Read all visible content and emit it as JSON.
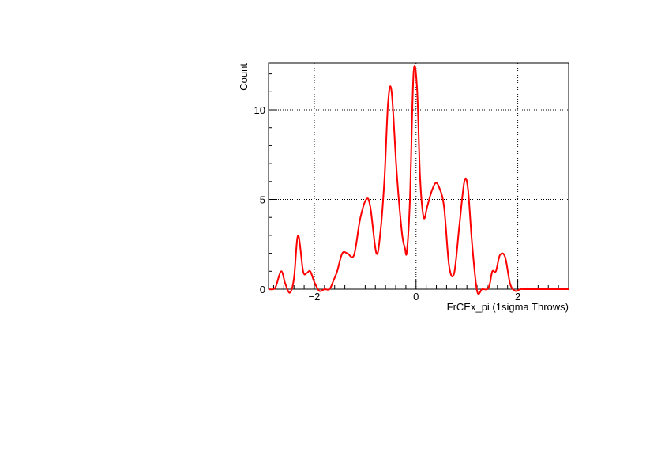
{
  "chart_data": {
    "type": "line",
    "title": "",
    "xlabel": "FrCEx_pi (1sigma Throws)",
    "ylabel": "Count",
    "xlim": [
      -2.9,
      3.0
    ],
    "ylim": [
      0,
      12.6
    ],
    "x_ticks": [
      -2,
      0,
      2
    ],
    "x_tick_labels": [
      "−2",
      "0",
      "2"
    ],
    "y_ticks": [
      0,
      5,
      10
    ],
    "y_tick_labels": [
      "0",
      "5",
      "10"
    ],
    "grid": true,
    "legend": "none",
    "series": [
      {
        "color": "#ff0000",
        "x": [
          -2.9,
          -2.8,
          -2.75,
          -2.65,
          -2.57,
          -2.48,
          -2.4,
          -2.32,
          -2.22,
          -2.15,
          -2.08,
          -2.0,
          -1.9,
          -1.8,
          -1.7,
          -1.62,
          -1.55,
          -1.45,
          -1.35,
          -1.22,
          -1.1,
          -0.98,
          -0.9,
          -0.78,
          -0.7,
          -0.62,
          -0.55,
          -0.48,
          -0.38,
          -0.28,
          -0.22,
          -0.18,
          -0.12,
          -0.05,
          0.02,
          0.08,
          0.15,
          0.22,
          0.3,
          0.38,
          0.45,
          0.55,
          0.65,
          0.75,
          0.85,
          0.95,
          1.02,
          1.1,
          1.2,
          1.3,
          1.4,
          1.45,
          1.5,
          1.57,
          1.65,
          1.75,
          1.85,
          1.95,
          2.05,
          2.12,
          2.2,
          2.28,
          2.35,
          2.45,
          2.6,
          2.8,
          3.0
        ],
        "y": [
          0,
          0,
          0.2,
          1.0,
          0.3,
          -0.2,
          0.6,
          3.0,
          1.0,
          0.9,
          1.0,
          0.4,
          -0.1,
          0.0,
          0.0,
          0.5,
          1.0,
          2.0,
          2.0,
          1.9,
          3.9,
          5.0,
          4.6,
          2.0,
          3.2,
          6.2,
          10.4,
          11.0,
          6.5,
          3.2,
          2.3,
          2.1,
          5.0,
          12.0,
          11.2,
          6.2,
          4.0,
          4.6,
          5.4,
          5.9,
          5.7,
          4.6,
          1.3,
          0.9,
          3.5,
          6.0,
          5.6,
          2.6,
          -0.1,
          0.0,
          0.0,
          0.3,
          1.0,
          1.0,
          1.9,
          1.8,
          0.3,
          -0.1,
          0.0,
          0.0,
          0.0,
          0.0,
          0.0,
          0.0,
          0.0,
          0.0,
          0.0
        ]
      }
    ]
  }
}
